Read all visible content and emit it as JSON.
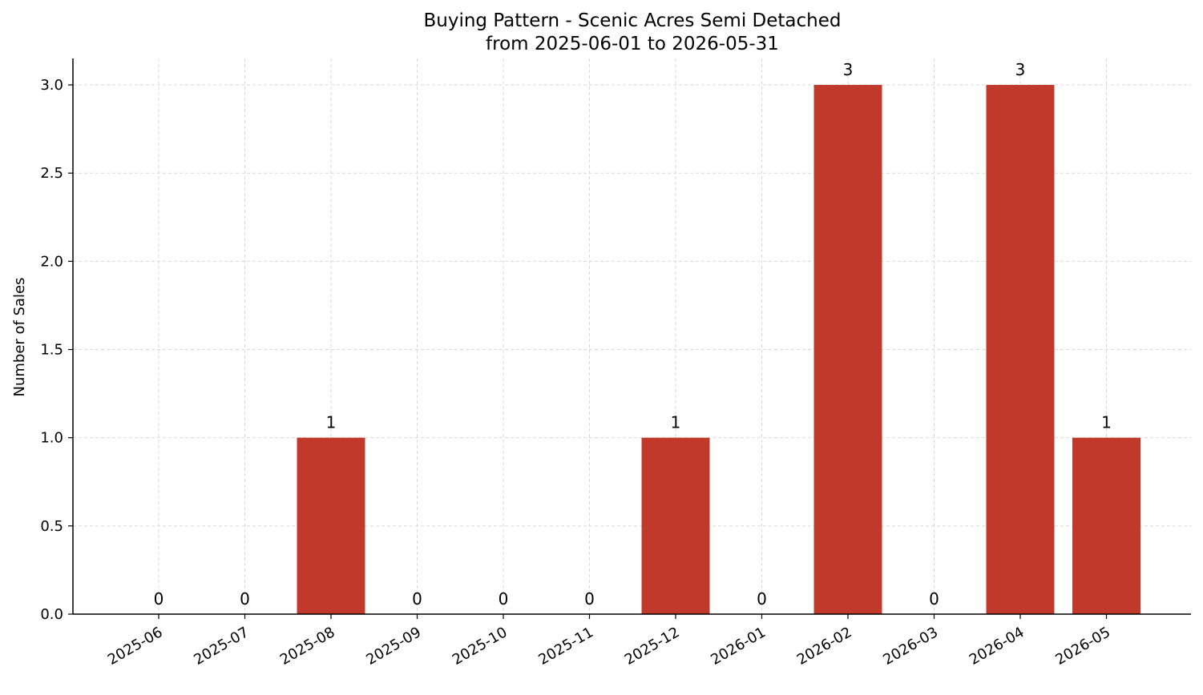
{
  "chart_data": {
    "type": "bar",
    "title": "Buying Pattern - Scenic Acres Semi Detached",
    "subtitle": "from 2025-06-01 to 2026-05-31",
    "xlabel": "",
    "ylabel": "Number of Sales",
    "categories": [
      "2025-06",
      "2025-07",
      "2025-08",
      "2025-09",
      "2025-10",
      "2025-11",
      "2025-12",
      "2026-01",
      "2026-02",
      "2026-03",
      "2026-04",
      "2026-05"
    ],
    "values": [
      0,
      0,
      1,
      0,
      0,
      0,
      1,
      0,
      3,
      0,
      3,
      1
    ],
    "data_labels": [
      "0",
      "0",
      "1",
      "0",
      "0",
      "0",
      "1",
      "0",
      "3",
      "0",
      "3",
      "1"
    ],
    "ylim": [
      0,
      3.15
    ],
    "yticks": [
      0.0,
      0.5,
      1.0,
      1.5,
      2.0,
      2.5,
      3.0
    ],
    "ytick_labels": [
      "0.0",
      "0.5",
      "1.0",
      "1.5",
      "2.0",
      "2.5",
      "3.0"
    ],
    "grid": true,
    "legend": "none",
    "bar_color": "#c0392b",
    "grid_color": "#d9d9d9"
  }
}
